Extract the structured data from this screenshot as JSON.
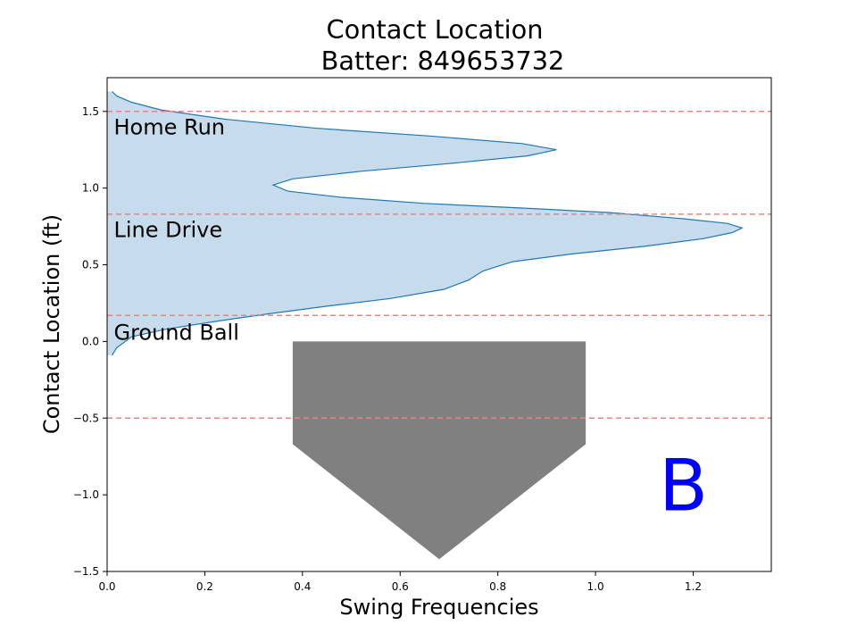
{
  "chart_data": {
    "type": "area",
    "title_line1": "Contact Location",
    "title_line2": "Batter: 849653732",
    "xlabel": "Swing Frequencies",
    "ylabel": "Contact Location (ft)",
    "xlim": [
      0.0,
      1.36
    ],
    "ylim": [
      -1.5,
      1.72
    ],
    "x_ticks": [
      {
        "value": 0.0,
        "label": "0.0"
      },
      {
        "value": 0.2,
        "label": "0.2"
      },
      {
        "value": 0.4,
        "label": "0.4"
      },
      {
        "value": 0.6,
        "label": "0.6"
      },
      {
        "value": 0.8,
        "label": "0.8"
      },
      {
        "value": 1.0,
        "label": "1.0"
      },
      {
        "value": 1.2,
        "label": "1.2"
      }
    ],
    "y_ticks": [
      {
        "value": -1.5,
        "label": "−1.5"
      },
      {
        "value": -1.0,
        "label": "−1.0"
      },
      {
        "value": -0.5,
        "label": "−0.5"
      },
      {
        "value": 0.0,
        "label": "0.0"
      },
      {
        "value": 0.5,
        "label": "0.5"
      },
      {
        "value": 1.0,
        "label": "1.0"
      },
      {
        "value": 1.5,
        "label": "1.5"
      }
    ],
    "density_curve": [
      {
        "x": 0.01,
        "y": -0.09
      },
      {
        "x": 0.02,
        "y": -0.04
      },
      {
        "x": 0.05,
        "y": 0.03
      },
      {
        "x": 0.12,
        "y": 0.08
      },
      {
        "x": 0.22,
        "y": 0.13
      },
      {
        "x": 0.33,
        "y": 0.18
      },
      {
        "x": 0.45,
        "y": 0.23
      },
      {
        "x": 0.58,
        "y": 0.28
      },
      {
        "x": 0.69,
        "y": 0.34
      },
      {
        "x": 0.74,
        "y": 0.4
      },
      {
        "x": 0.77,
        "y": 0.46
      },
      {
        "x": 0.83,
        "y": 0.52
      },
      {
        "x": 0.95,
        "y": 0.57
      },
      {
        "x": 1.1,
        "y": 0.62
      },
      {
        "x": 1.22,
        "y": 0.67
      },
      {
        "x": 1.28,
        "y": 0.71
      },
      {
        "x": 1.3,
        "y": 0.74
      },
      {
        "x": 1.27,
        "y": 0.77
      },
      {
        "x": 1.18,
        "y": 0.8
      },
      {
        "x": 1.03,
        "y": 0.84
      },
      {
        "x": 0.85,
        "y": 0.87
      },
      {
        "x": 0.65,
        "y": 0.9
      },
      {
        "x": 0.48,
        "y": 0.94
      },
      {
        "x": 0.37,
        "y": 0.98
      },
      {
        "x": 0.34,
        "y": 1.02
      },
      {
        "x": 0.38,
        "y": 1.06
      },
      {
        "x": 0.52,
        "y": 1.11
      },
      {
        "x": 0.7,
        "y": 1.16
      },
      {
        "x": 0.86,
        "y": 1.21
      },
      {
        "x": 0.92,
        "y": 1.25
      },
      {
        "x": 0.85,
        "y": 1.29
      },
      {
        "x": 0.66,
        "y": 1.34
      },
      {
        "x": 0.43,
        "y": 1.39
      },
      {
        "x": 0.24,
        "y": 1.45
      },
      {
        "x": 0.11,
        "y": 1.51
      },
      {
        "x": 0.05,
        "y": 1.56
      },
      {
        "x": 0.02,
        "y": 1.6
      },
      {
        "x": 0.01,
        "y": 1.63
      }
    ],
    "zone_lines_y": [
      1.5,
      0.83,
      0.17,
      -0.5
    ],
    "zone_labels": [
      {
        "text": "Home Run",
        "x": 0.01,
        "y": 1.35
      },
      {
        "text": "Line Drive",
        "x": 0.01,
        "y": 0.68
      },
      {
        "text": "Ground Ball",
        "x": 0.01,
        "y": 0.01
      }
    ],
    "home_plate": [
      {
        "x": 0.38,
        "y": 0.0
      },
      {
        "x": 0.98,
        "y": 0.0
      },
      {
        "x": 0.98,
        "y": -0.67
      },
      {
        "x": 0.68,
        "y": -1.42
      },
      {
        "x": 0.38,
        "y": -0.67
      }
    ],
    "grade": {
      "text": "B",
      "x": 1.13,
      "y": -1.1,
      "color": "#0000ff"
    },
    "colors": {
      "curve": "#1f77b4",
      "fill": "#c6dbec",
      "zone_line": "#f08080",
      "plate": "#808080"
    }
  }
}
